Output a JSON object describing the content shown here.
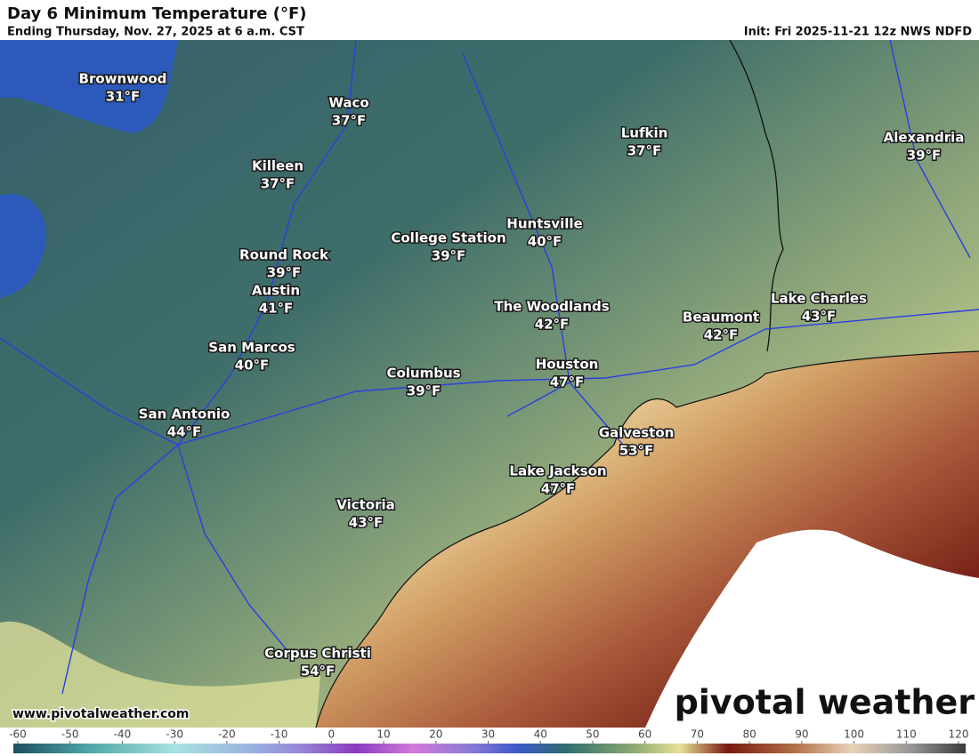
{
  "header": {
    "title": "Day 6 Minimum Temperature (°F)",
    "subtitle": "Ending Thursday, Nov. 27, 2025 at 6 a.m. CST",
    "init": "Init: Fri 2025-11-21 12z NWS NDFD"
  },
  "cities": [
    {
      "name": "Brownwood",
      "temp": "31°F"
    },
    {
      "name": "Waco",
      "temp": "37°F"
    },
    {
      "name": "Killeen",
      "temp": "37°F"
    },
    {
      "name": "Lufkin",
      "temp": "37°F"
    },
    {
      "name": "Alexandria",
      "temp": "39°F"
    },
    {
      "name": "Huntsville",
      "temp": "40°F"
    },
    {
      "name": "College Station",
      "temp": "39°F"
    },
    {
      "name": "Round Rock",
      "temp": "39°F"
    },
    {
      "name": "Austin",
      "temp": "41°F"
    },
    {
      "name": "The Woodlands",
      "temp": "42°F"
    },
    {
      "name": "Lake Charles",
      "temp": "43°F"
    },
    {
      "name": "Beaumont",
      "temp": "42°F"
    },
    {
      "name": "San Marcos",
      "temp": "40°F"
    },
    {
      "name": "Houston",
      "temp": "47°F"
    },
    {
      "name": "Columbus",
      "temp": "39°F"
    },
    {
      "name": "San Antonio",
      "temp": "44°F"
    },
    {
      "name": "Galveston",
      "temp": "53°F"
    },
    {
      "name": "Lake Jackson",
      "temp": "47°F"
    },
    {
      "name": "Victoria",
      "temp": "43°F"
    },
    {
      "name": "Corpus Christi",
      "temp": "54°F"
    }
  ],
  "footer": {
    "website": "www.pivotalweather.com",
    "logo": "pivotal weather"
  },
  "colorbar": {
    "ticks": [
      -60,
      -50,
      -40,
      -30,
      -20,
      -10,
      0,
      10,
      20,
      30,
      40,
      50,
      60,
      70,
      80,
      90,
      100,
      110,
      120
    ]
  }
}
